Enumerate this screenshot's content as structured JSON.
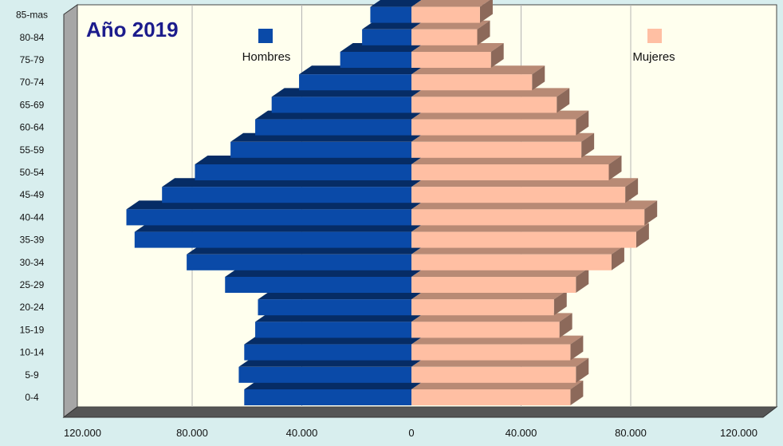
{
  "chart_data": {
    "type": "bar",
    "title": "Año 2019",
    "categories": [
      "0-4",
      "5-9",
      "10-14",
      "15-19",
      "20-24",
      "25-29",
      "30-34",
      "35-39",
      "40-44",
      "45-49",
      "50-54",
      "55-59",
      "60-64",
      "65-69",
      "70-74",
      "75-79",
      "80-84",
      "85-mas"
    ],
    "series": [
      {
        "name": "Hombres",
        "color": "#0a4aa8",
        "values": [
          61000,
          63000,
          61000,
          57000,
          56000,
          68000,
          82000,
          101000,
          104000,
          91000,
          79000,
          66000,
          57000,
          51000,
          41000,
          26000,
          18000,
          15000
        ]
      },
      {
        "name": "Mujeres",
        "color": "#ffbfa3",
        "values": [
          58000,
          60000,
          58000,
          54000,
          52000,
          60000,
          73000,
          82000,
          85000,
          78000,
          72000,
          62000,
          60000,
          53000,
          44000,
          29000,
          24000,
          25000
        ]
      }
    ],
    "x_tick_labels": [
      "120.000",
      "80.000",
      "40.000",
      "0",
      "40.000",
      "80.000",
      "120.000"
    ],
    "xlim": [
      -120000,
      120000
    ],
    "grid": true,
    "legend_position": "top"
  }
}
